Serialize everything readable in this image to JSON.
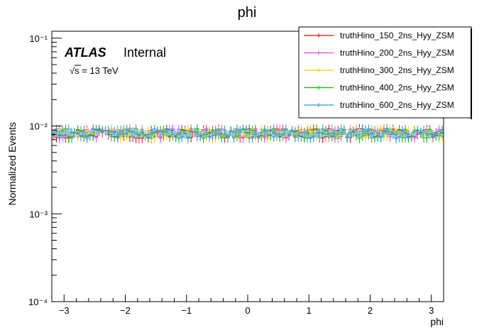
{
  "chart_data": {
    "type": "line",
    "title": "phi",
    "xlabel": "phi",
    "ylabel": "Normalized Events",
    "xlim": [
      -3.2,
      3.2
    ],
    "ylim": [
      0.0001,
      0.12
    ],
    "y_scale": "log",
    "grid": false,
    "x_ticks": [
      -3,
      -2,
      -1,
      0,
      1,
      2,
      3
    ],
    "x_tick_labels": [
      "−3",
      "−2",
      "−1",
      "0",
      "1",
      "2",
      "3"
    ],
    "y_ticks": [
      0.0001,
      0.001,
      0.01,
      0.1
    ],
    "y_tick_labels": [
      "10⁻⁴",
      "10⁻³",
      "10⁻²",
      "10⁻¹"
    ],
    "legend_position": "top-right",
    "annotations": {
      "experiment": "ATLAS",
      "status": "Internal",
      "energy": "√s = 13 TeV"
    },
    "bins": {
      "start": -3.2,
      "end": 3.2,
      "count": 128
    },
    "series": [
      {
        "name": "truthHino_150_2ns_Hyy_ZSM",
        "color": "#ee0000",
        "mean": 0.0083
      },
      {
        "name": "truthHino_200_2ns_Hyy_ZSM",
        "color": "#ee44ee",
        "mean": 0.0083
      },
      {
        "name": "truthHino_300_2ns_Hyy_ZSM",
        "color": "#ffcc00",
        "mean": 0.0083
      },
      {
        "name": "truthHino_400_2ns_Hyy_ZSM",
        "color": "#00bb00",
        "mean": 0.0083
      },
      {
        "name": "truthHino_600_2ns_Hyy_ZSM",
        "color": "#2299dd",
        "mean": 0.0083
      }
    ]
  }
}
